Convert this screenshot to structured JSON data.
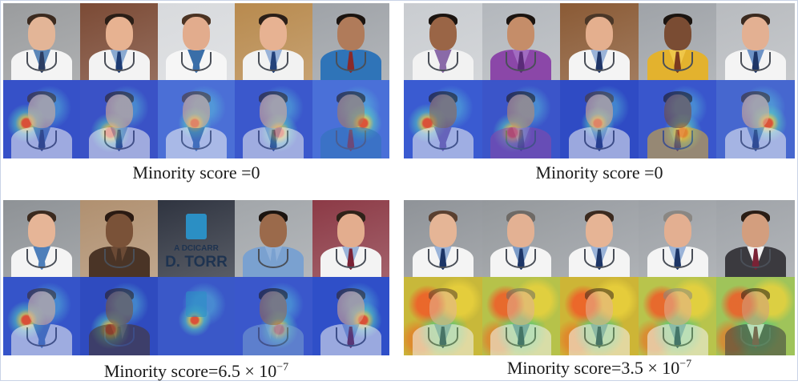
{
  "panels": [
    {
      "id": "top-left",
      "caption": "Minority score =0",
      "exponent": "",
      "photos": [
        {
          "bg": "#9a9c9e",
          "skin": "#e3b597",
          "hair": "#3b2a1f",
          "coat": "#f4f4f4",
          "shirt": "#5c87b8",
          "tie": "#2c3e63"
        },
        {
          "bg": "#7b4a35",
          "skin": "#e7b291",
          "hair": "#2b1e16",
          "coat": "#f3f3f3",
          "shirt": "#8aaad1",
          "tie": "#1d3b73"
        },
        {
          "bg": "#d8dadd",
          "skin": "#e2ac8d",
          "hair": "#4b3323",
          "coat": "#f6f6f6",
          "shirt": "#3a6ea8",
          "tie": "#3a6ea8"
        },
        {
          "bg": "#b88a4e",
          "skin": "#e7b292",
          "hair": "#2b1f18",
          "coat": "#f2f2f2",
          "shirt": "#9ab3d8",
          "tie": "#24427a"
        },
        {
          "bg": "#9fa3a8",
          "skin": "#b07b5a",
          "hair": "#1b1410",
          "coat": "#2f74b8",
          "shirt": "#2f74b8",
          "tie": "#8a2a2a"
        }
      ],
      "heatmaps": [
        "#3651c8",
        "#3a52c6",
        "#4b6fd6",
        "#3b58cc",
        "#4a70d8"
      ]
    },
    {
      "id": "top-right",
      "caption": "Minority score =0",
      "exponent": "",
      "photos": [
        {
          "bg": "#c9ccd0",
          "skin": "#9a6546",
          "hair": "#1b1410",
          "coat": "#f2f2f2",
          "shirt": "#8a6aa8",
          "tie": "#8a6aa8"
        },
        {
          "bg": "#b3b7bc",
          "skin": "#c58d69",
          "hair": "#1b1410",
          "coat": "#8b47a8",
          "shirt": "#a16cc1",
          "tie": "#5a2b78"
        },
        {
          "bg": "#8a5a35",
          "skin": "#e4af8e",
          "hair": "#4b3727",
          "coat": "#f4f4f4",
          "shirt": "#9ab3d8",
          "tie": "#1f3567"
        },
        {
          "bg": "#9fa3a8",
          "skin": "#7a4c33",
          "hair": "#1b1410",
          "coat": "#e3b22e",
          "shirt": "#efc649",
          "tie": "#7b3a1f"
        },
        {
          "bg": "#b8bbbf",
          "skin": "#e3b092",
          "hair": "#3b2a1f",
          "coat": "#f4f4f4",
          "shirt": "#6e93c6",
          "tie": "#1d3566"
        }
      ],
      "heatmaps": [
        "#3a5bd1",
        "#3b55c9",
        "#2f4bc4",
        "#3956cc",
        "#4667cf"
      ]
    },
    {
      "id": "bottom-left",
      "caption": "Minority score=6.5 × 10",
      "exponent": "−7",
      "photos": [
        {
          "bg": "#8e9296",
          "skin": "#e6b597",
          "hair": "#3b2a1f",
          "coat": "#f4f4f4",
          "shirt": "#4e7fba",
          "tie": "#4e7fba"
        },
        {
          "bg": "#b09070",
          "skin": "#7a5238",
          "hair": "#2a1a12",
          "coat": "#4a3426",
          "shirt": "#6b4a35",
          "tie": "#4a3426"
        },
        {
          "bg": "#2f3440",
          "skin": "#2b8fc4",
          "hair": "#2b8fc4",
          "coat": "#c9ced6",
          "shirt": "#c9ced6",
          "tie": "#c9ced6",
          "sign": true
        },
        {
          "bg": "#a2a6aa",
          "skin": "#9b6a4b",
          "hair": "#1b1410",
          "coat": "#7aa1d0",
          "shirt": "#8fb0d8",
          "tie": "#7aa1d0"
        },
        {
          "bg": "#8c3a46",
          "skin": "#e3ad8e",
          "hair": "#2f2219",
          "coat": "#f3f3f3",
          "shirt": "#9ab3d8",
          "tie": "#7a2235"
        }
      ],
      "sign_lines": [
        "A DCICARR",
        "D. TORR"
      ],
      "heatmaps": [
        "#3554c9",
        "#2f4bbf",
        "#3a58c8",
        "#3a57cb",
        "#2f4fc8"
      ]
    },
    {
      "id": "bottom-right",
      "caption": "Minority score=3.5 × 10",
      "exponent": "−7",
      "photos": [
        {
          "bg": "#8f9398",
          "skin": "#e5b596",
          "hair": "#5a4030",
          "coat": "#f4f4f4",
          "shirt": "#9ab3d8",
          "tie": "#1d3566"
        },
        {
          "bg": "#94989c",
          "skin": "#e3b193",
          "hair": "#6e6a66",
          "coat": "#f4f4f4",
          "shirt": "#7c9cc8",
          "tie": "#1d3566"
        },
        {
          "bg": "#9a9ea3",
          "skin": "#e6b495",
          "hair": "#3b2a1f",
          "coat": "#f4f4f4",
          "shirt": "#9ab3d8",
          "tie": "#1d3566"
        },
        {
          "bg": "#9da1a6",
          "skin": "#e3af91",
          "hair": "#8a8783",
          "coat": "#f4f4f4",
          "shirt": "#9ab3d8",
          "tie": "#1d3566"
        },
        {
          "bg": "#9fa3a8",
          "skin": "#d39e7e",
          "hair": "#2a1d15",
          "coat": "#3b3a3f",
          "shirt": "#f2f2f2",
          "tie": "#7a2235"
        }
      ],
      "heatmaps": [
        "#c8b83a",
        "#b6c24a",
        "#cdb536",
        "#b8c44c",
        "#9fc45a"
      ]
    }
  ]
}
